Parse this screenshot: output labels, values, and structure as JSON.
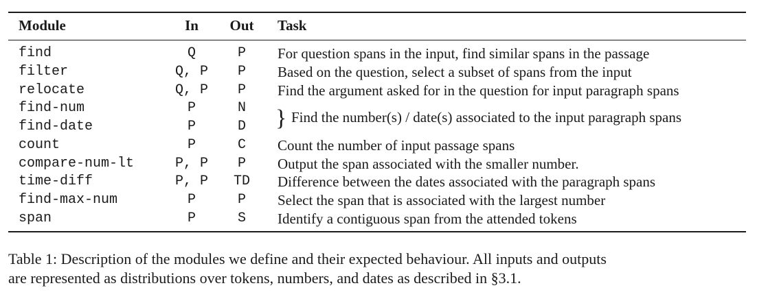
{
  "table": {
    "headers": {
      "module": "Module",
      "in": "In",
      "out": "Out",
      "task": "Task"
    },
    "rows": [
      {
        "module": "find",
        "in": "Q",
        "out": "P",
        "task": "For question spans in the input, find similar spans in the passage"
      },
      {
        "module": "filter",
        "in": "Q, P",
        "out": "P",
        "task": "Based on the question, select a subset of spans from the input"
      },
      {
        "module": "relocate",
        "in": "Q, P",
        "out": "P",
        "task": "Find the argument asked for in the question for input paragraph spans"
      },
      {
        "module": "find-num",
        "in": "P",
        "out": "N",
        "task": ""
      },
      {
        "module": "find-date",
        "in": "P",
        "out": "D",
        "task": ""
      },
      {
        "module": "count",
        "in": "P",
        "out": "C",
        "task": "Count the number of input passage spans"
      },
      {
        "module": "compare-num-lt",
        "in": "P, P",
        "out": "P",
        "task": "Output the span associated with the smaller number."
      },
      {
        "module": "time-diff",
        "in": "P, P",
        "out": "TD",
        "task": "Difference between the dates associated with the paragraph spans"
      },
      {
        "module": "find-max-num",
        "in": "P",
        "out": "P",
        "task": "Select the span that is associated with the largest number"
      },
      {
        "module": "span",
        "in": "P",
        "out": "S",
        "task": "Identify a contiguous span from the attended tokens"
      }
    ],
    "merged_task": {
      "brace": "}",
      "text": "Find the number(s) / date(s) associated to the input paragraph spans"
    }
  },
  "caption": {
    "line1": "Table 1:  Description of the modules we define and their expected behaviour. All inputs and outputs",
    "line2": "are represented as distributions over tokens, numbers, and dates as described in §3.1."
  }
}
